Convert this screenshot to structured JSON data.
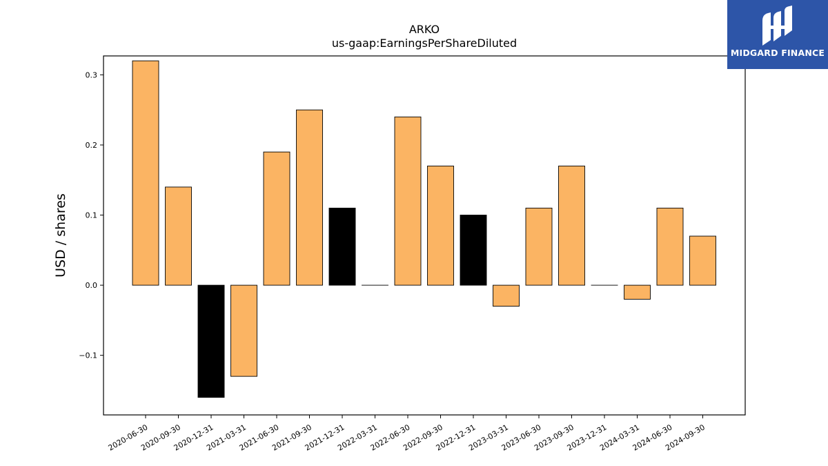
{
  "chart_data": {
    "type": "bar",
    "title": "ARKO",
    "subtitle": "us-gaap:EarningsPerShareDiluted",
    "ylabel": "USD / shares",
    "xlabel": "",
    "categories": [
      "2020-06-30",
      "2020-09-30",
      "2020-12-31",
      "2021-03-31",
      "2021-06-30",
      "2021-09-30",
      "2021-12-31",
      "2022-03-31",
      "2022-06-30",
      "2022-09-30",
      "2022-12-31",
      "2023-03-31",
      "2023-06-30",
      "2023-09-30",
      "2023-12-31",
      "2024-03-31",
      "2024-06-30",
      "2024-09-30"
    ],
    "values": [
      0.32,
      0.14,
      -0.16,
      -0.13,
      0.19,
      0.25,
      0.11,
      0.0,
      0.24,
      0.17,
      0.1,
      -0.03,
      0.11,
      0.17,
      0.0,
      -0.02,
      0.11,
      0.07
    ],
    "bar_colors": [
      "#fbb463",
      "#fbb463",
      "#000000",
      "#fbb463",
      "#fbb463",
      "#fbb463",
      "#000000",
      "#fbb463",
      "#fbb463",
      "#fbb463",
      "#000000",
      "#fbb463",
      "#fbb463",
      "#fbb463",
      "#fbb463",
      "#fbb463",
      "#fbb463",
      "#fbb463"
    ],
    "ylim": [
      -0.185,
      0.327
    ],
    "yticks": [
      -0.1,
      0.0,
      0.1,
      0.2,
      0.3
    ],
    "ytick_labels": [
      "−0.1",
      "0.0",
      "0.1",
      "0.2",
      "0.3"
    ],
    "grid": false,
    "legend": "none"
  },
  "logo": {
    "text": "MIDGARD FINANCE",
    "background": "#2d55a8"
  }
}
